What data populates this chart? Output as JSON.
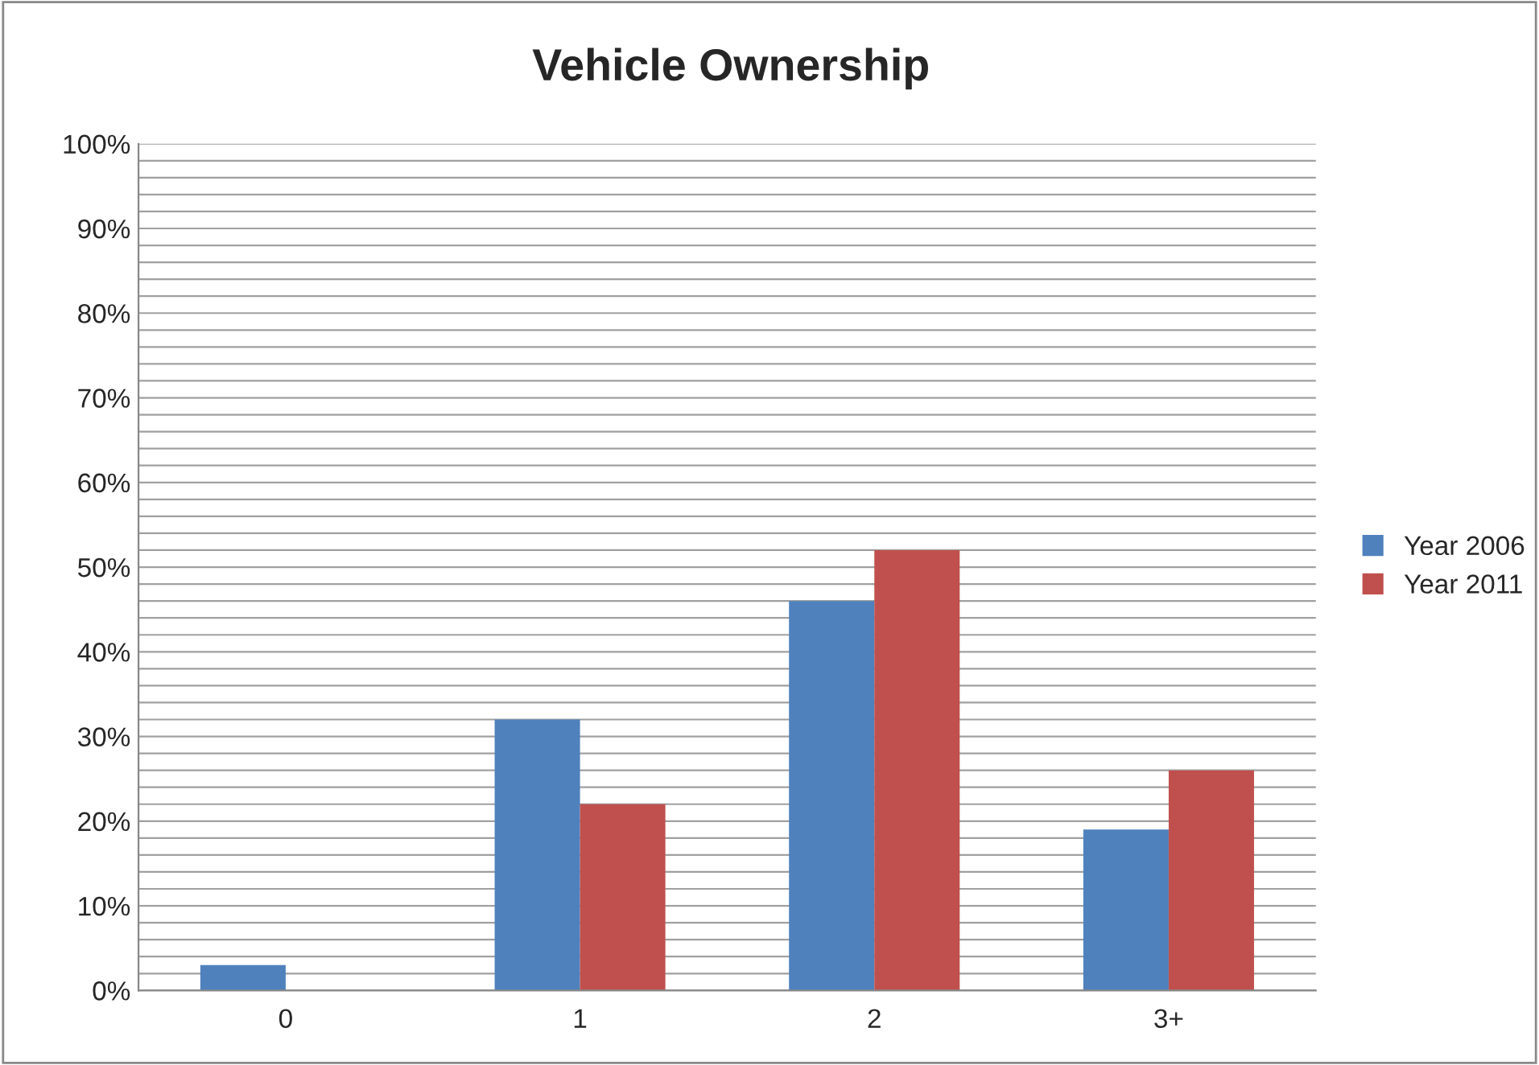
{
  "chart_data": {
    "type": "bar",
    "title": "Vehicle Ownership",
    "categories": [
      "0",
      "1",
      "2",
      "3+"
    ],
    "series": [
      {
        "name": "Year 2006",
        "color": "#4f81bd",
        "values": [
          3,
          32,
          46,
          19
        ]
      },
      {
        "name": "Year 2011",
        "color": "#c0504d",
        "values": [
          null,
          22,
          52,
          26
        ]
      }
    ],
    "ylim": [
      0,
      100
    ],
    "yticks": [
      {
        "value": 0,
        "label": "0%"
      },
      {
        "value": 2,
        "label": null
      },
      {
        "value": 4,
        "label": null
      },
      {
        "value": 6,
        "label": null
      },
      {
        "value": 8,
        "label": null
      },
      {
        "value": 10,
        "label": "10%"
      },
      {
        "value": 12,
        "label": null
      },
      {
        "value": 14,
        "label": null
      },
      {
        "value": 16,
        "label": null
      },
      {
        "value": 18,
        "label": null
      },
      {
        "value": 20,
        "label": "20%"
      },
      {
        "value": 22,
        "label": null
      },
      {
        "value": 24,
        "label": null
      },
      {
        "value": 26,
        "label": null
      },
      {
        "value": 28,
        "label": null
      },
      {
        "value": 30,
        "label": "30%"
      },
      {
        "value": 32,
        "label": null
      },
      {
        "value": 34,
        "label": null
      },
      {
        "value": 36,
        "label": null
      },
      {
        "value": 38,
        "label": null
      },
      {
        "value": 40,
        "label": "40%"
      },
      {
        "value": 42,
        "label": null
      },
      {
        "value": 44,
        "label": null
      },
      {
        "value": 46,
        "label": null
      },
      {
        "value": 48,
        "label": null
      },
      {
        "value": 50,
        "label": "50%"
      },
      {
        "value": 52,
        "label": null
      },
      {
        "value": 54,
        "label": null
      },
      {
        "value": 56,
        "label": null
      },
      {
        "value": 58,
        "label": null
      },
      {
        "value": 60,
        "label": "60%"
      },
      {
        "value": 62,
        "label": null
      },
      {
        "value": 64,
        "label": null
      },
      {
        "value": 66,
        "label": null
      },
      {
        "value": 68,
        "label": null
      },
      {
        "value": 70,
        "label": "70%"
      },
      {
        "value": 72,
        "label": null
      },
      {
        "value": 74,
        "label": null
      },
      {
        "value": 76,
        "label": null
      },
      {
        "value": 78,
        "label": null
      },
      {
        "value": 80,
        "label": "80%"
      },
      {
        "value": 82,
        "label": null
      },
      {
        "value": 84,
        "label": null
      },
      {
        "value": 86,
        "label": null
      },
      {
        "value": 88,
        "label": null
      },
      {
        "value": 90,
        "label": "90%"
      },
      {
        "value": 92,
        "label": null
      },
      {
        "value": 94,
        "label": null
      },
      {
        "value": 96,
        "label": null
      },
      {
        "value": 98,
        "label": null
      },
      {
        "value": 100,
        "label": "100%"
      }
    ],
    "grid": "y",
    "legend": "right"
  }
}
